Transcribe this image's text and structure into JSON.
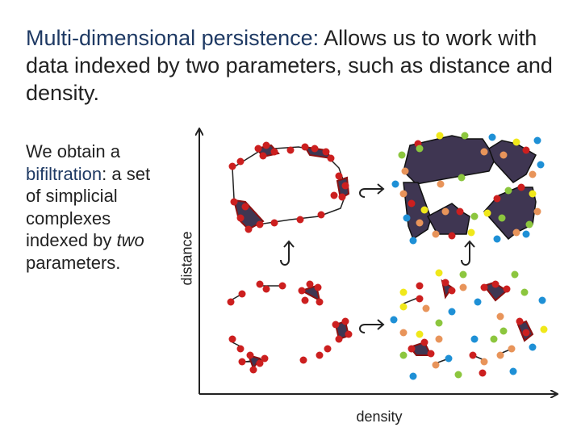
{
  "title": {
    "highlight": "Multi-dimensional persistence:",
    "rest": " Allows us to work with data indexed by two parameters, such as distance and density."
  },
  "sidebar": {
    "line1": "We obtain a",
    "term": "bifiltration",
    "colon": ":",
    "line2": "a set of simplicial complexes indexed by",
    "emph": "two",
    "line3": "parameters."
  },
  "axes": {
    "ylabel": "distance",
    "xlabel": "density"
  },
  "colors": {
    "red_point": "#cc1f1f",
    "blue_point": "#1e90d6",
    "yellow_point": "#f0e81a",
    "green_point": "#8cc63e",
    "orange_point": "#e8945a",
    "complex_fill": "#3f3652",
    "text_highlight": "#1f3a64"
  },
  "icons": [
    "hook-arrow-right-icon",
    "hook-arrow-up-icon"
  ]
}
